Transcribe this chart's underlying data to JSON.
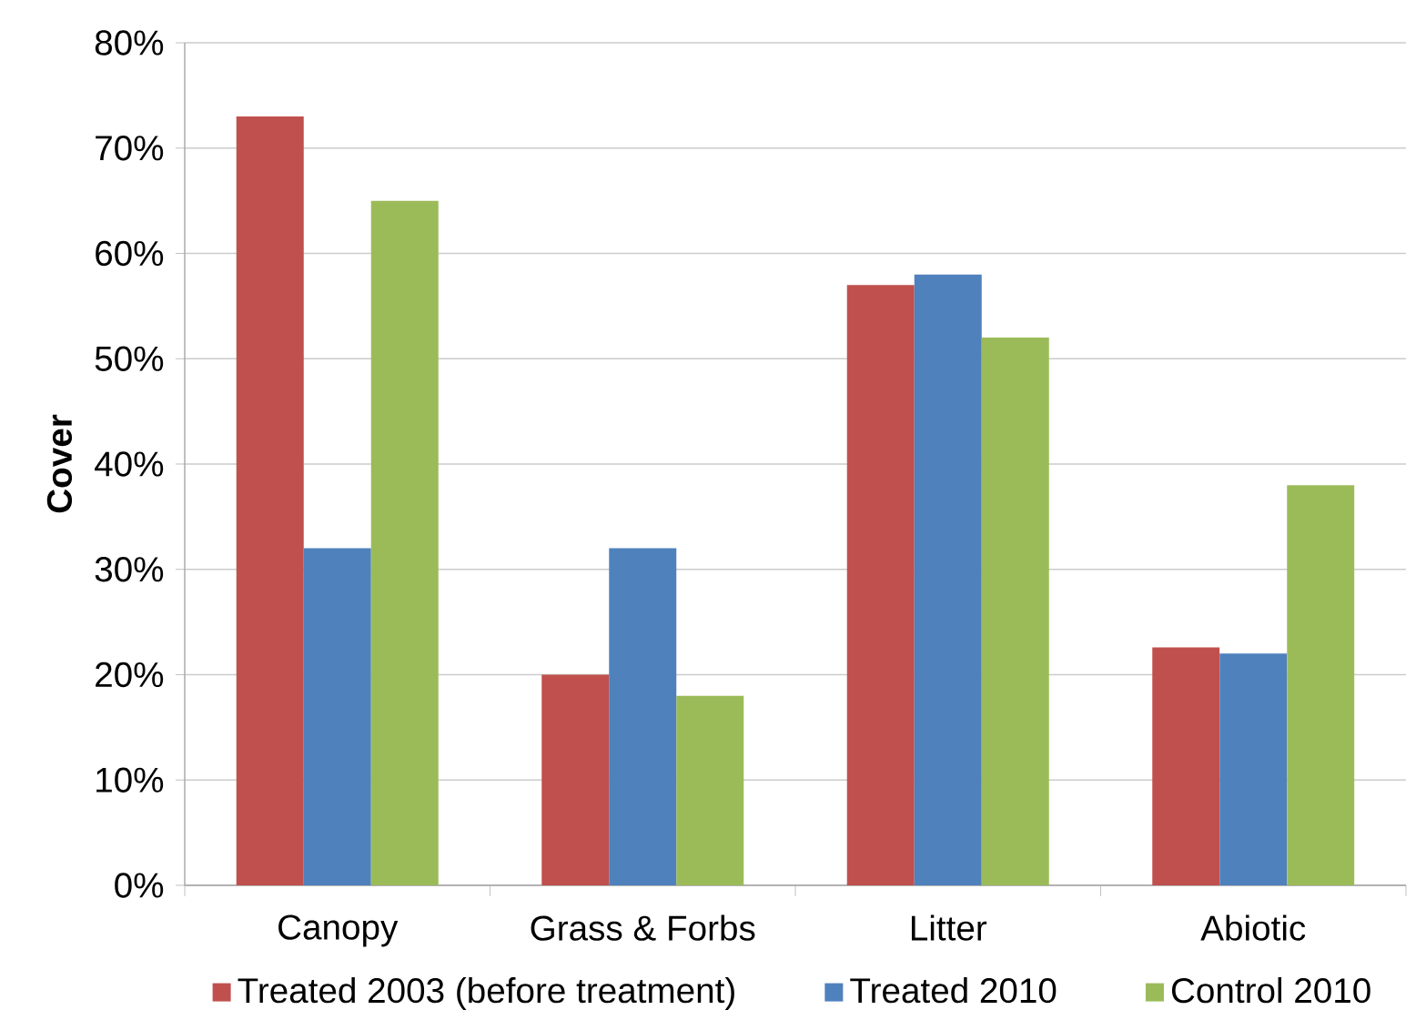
{
  "chart_data": {
    "type": "bar",
    "ylabel": "Cover",
    "categories": [
      "Canopy",
      "Grass & Forbs",
      "Litter",
      "Abiotic"
    ],
    "series": [
      {
        "name": "Treated 2003 (before treatment)",
        "color": "#c0504d",
        "values": [
          73,
          20,
          57,
          22.6
        ]
      },
      {
        "name": "Treated 2010",
        "color": "#4f81bd",
        "values": [
          32,
          32,
          58,
          22
        ]
      },
      {
        "name": "Control 2010",
        "color": "#9bbb59",
        "values": [
          65,
          18,
          52,
          38
        ]
      }
    ],
    "ylim": [
      0,
      80
    ],
    "yticks": [
      {
        "value": 0,
        "label": "0%"
      },
      {
        "value": 10,
        "label": "10%"
      },
      {
        "value": 20,
        "label": "20%"
      },
      {
        "value": 30,
        "label": "30%"
      },
      {
        "value": 40,
        "label": "40%"
      },
      {
        "value": 50,
        "label": "50%"
      },
      {
        "value": 60,
        "label": "60%"
      },
      {
        "value": 70,
        "label": "70%"
      },
      {
        "value": 80,
        "label": "80%"
      }
    ],
    "grid": "y",
    "legend": "bottom"
  }
}
